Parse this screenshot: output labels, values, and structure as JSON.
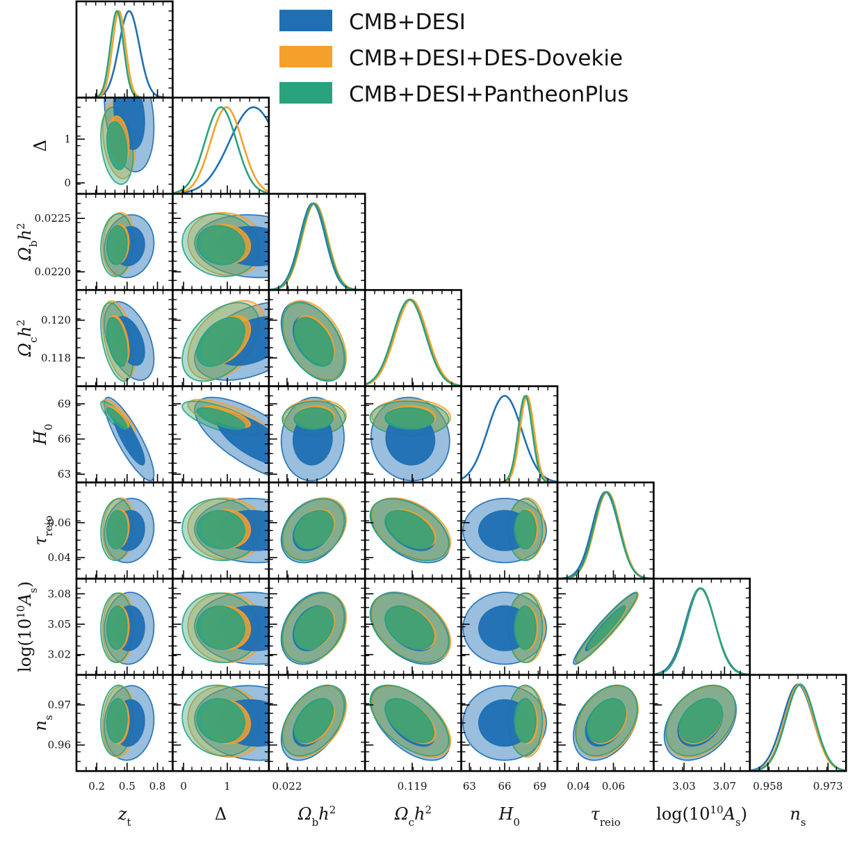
{
  "chart_data": {
    "type": "corner",
    "title": "",
    "legend": {
      "placement": "top-right",
      "entries": [
        {
          "name": "CMB+DESI",
          "color": "#1f6fb4"
        },
        {
          "name": "CMB+DESI+DES-Dovekie",
          "color": "#f5a02a"
        },
        {
          "name": "CMB+DESI+PantheonPlus",
          "color": "#2aa27e"
        }
      ]
    },
    "parameters": [
      {
        "key": "zt",
        "label_main": "z",
        "label_sub": "t",
        "label_sup": "",
        "range": [
          0.0,
          0.95
        ],
        "ticks": [
          {
            "v": 0.2,
            "t": "0.2"
          },
          {
            "v": 0.5,
            "t": "0.5"
          },
          {
            "v": 0.8,
            "t": "0.8"
          }
        ],
        "row_ticks": []
      },
      {
        "key": "Delta",
        "label_main": "Δ",
        "label_sub": "",
        "label_sup": "",
        "range": [
          -0.25,
          1.95
        ],
        "ticks": [
          {
            "v": 0,
            "t": "0"
          },
          {
            "v": 1,
            "t": "1"
          }
        ],
        "row_ticks": [
          {
            "v": 0,
            "t": "0"
          },
          {
            "v": 1,
            "t": "1"
          }
        ]
      },
      {
        "key": "ombh2",
        "label_main": "Ω",
        "label_sub": "b",
        "label_sup": "",
        "label_tail": "h",
        "tail_sup": "2",
        "range": [
          0.02183,
          0.02273
        ],
        "ticks": [
          {
            "v": 0.022,
            "t": "0.022"
          }
        ],
        "row_ticks": [
          {
            "v": 0.0225,
            "t": "0.0225"
          },
          {
            "v": 0.022,
            "t": "0.0220"
          }
        ]
      },
      {
        "key": "omch2",
        "label_main": "Ω",
        "label_sub": "c",
        "label_sup": "",
        "label_tail": "h",
        "tail_sup": "2",
        "range": [
          0.1165,
          0.1216
        ],
        "ticks": [
          {
            "v": 0.119,
            "t": "0.119"
          }
        ],
        "row_ticks": [
          {
            "v": 0.12,
            "t": "0.120"
          },
          {
            "v": 0.118,
            "t": "0.118"
          }
        ]
      },
      {
        "key": "H0",
        "label_main": "H",
        "label_sub": "0",
        "label_sup": "",
        "range": [
          62.3,
          70.5
        ],
        "ticks": [
          {
            "v": 63,
            "t": "63"
          },
          {
            "v": 66,
            "t": "66"
          },
          {
            "v": 69,
            "t": "69"
          }
        ],
        "row_ticks": [
          {
            "v": 69,
            "t": "69"
          },
          {
            "v": 66,
            "t": "66"
          },
          {
            "v": 63,
            "t": "63"
          }
        ]
      },
      {
        "key": "tau",
        "label_main": "τ",
        "label_sub": "reio",
        "label_sup": "",
        "range": [
          0.028,
          0.083
        ],
        "ticks": [
          {
            "v": 0.04,
            "t": "0.04"
          },
          {
            "v": 0.06,
            "t": "0.06"
          }
        ],
        "row_ticks": [
          {
            "v": 0.06,
            "t": "0.06"
          },
          {
            "v": 0.04,
            "t": "0.04"
          }
        ]
      },
      {
        "key": "logA",
        "label_main": "log(10",
        "label_sub": "",
        "label_sup": "10",
        "label_tail": "A",
        "tail_sub": "s",
        "tail_close": ")",
        "range": [
          3.0,
          3.095
        ],
        "ticks": [
          {
            "v": 3.03,
            "t": "3.03"
          },
          {
            "v": 3.07,
            "t": "3.07"
          }
        ],
        "row_ticks": [
          {
            "v": 3.08,
            "t": "3.08"
          },
          {
            "v": 3.05,
            "t": "3.05"
          },
          {
            "v": 3.02,
            "t": "3.02"
          }
        ]
      },
      {
        "key": "ns",
        "label_main": "n",
        "label_sub": "s",
        "label_sup": "",
        "range": [
          0.9535,
          0.9775
        ],
        "ticks": [
          {
            "v": 0.958,
            "t": "0.958"
          },
          {
            "v": 0.973,
            "t": "0.973"
          }
        ],
        "row_ticks": [
          {
            "v": 0.97,
            "t": "0.97"
          },
          {
            "v": 0.96,
            "t": "0.96"
          }
        ]
      }
    ],
    "series": [
      {
        "name": "CMB+DESI",
        "means": {
          "zt": 0.52,
          "Delta": 1.6,
          "ombh2": 0.02224,
          "omch2": 0.1189,
          "H0": 66.0,
          "tau": 0.0555,
          "logA": 3.046,
          "ns": 0.9655
        },
        "sigmas": {
          "zt": 0.1,
          "Delta": 0.55,
          "ombh2": 0.00012,
          "omch2": 0.00085,
          "H0": 1.45,
          "tau": 0.0075,
          "logA": 0.0145,
          "ns": 0.0038
        }
      },
      {
        "name": "CMB+DESI+DES-Dovekie",
        "means": {
          "zt": 0.42,
          "Delta": 0.98,
          "ombh2": 0.02226,
          "omch2": 0.11895,
          "H0": 67.9,
          "tau": 0.0565,
          "logA": 3.0465,
          "ns": 0.9658
        },
        "sigmas": {
          "zt": 0.065,
          "Delta": 0.36,
          "ombh2": 0.00012,
          "omch2": 0.00085,
          "H0": 0.6,
          "tau": 0.0072,
          "logA": 0.014,
          "ns": 0.0036
        }
      },
      {
        "name": "CMB+DESI+PantheonPlus",
        "means": {
          "zt": 0.4,
          "Delta": 0.85,
          "ombh2": 0.02225,
          "omch2": 0.11885,
          "H0": 67.75,
          "tau": 0.056,
          "logA": 3.0465,
          "ns": 0.9661
        },
        "sigmas": {
          "zt": 0.065,
          "Delta": 0.36,
          "ombh2": 0.00012,
          "omch2": 0.00085,
          "H0": 0.6,
          "tau": 0.0072,
          "logA": 0.014,
          "ns": 0.0036
        }
      }
    ],
    "correlations": {
      "zt|Delta": -0.25,
      "zt|ombh2": 0.1,
      "zt|omch2": -0.45,
      "zt|H0": -0.85,
      "zt|tau": 0.1,
      "zt|logA": 0.05,
      "zt|ns": 0.1,
      "Delta|ombh2": -0.1,
      "Delta|omch2": 0.45,
      "Delta|H0": -0.7,
      "Delta|tau": -0.05,
      "Delta|logA": -0.05,
      "Delta|ns": -0.1,
      "ombh2|omch2": -0.45,
      "ombh2|H0": 0.05,
      "ombh2|tau": 0.3,
      "ombh2|logA": 0.3,
      "ombh2|ns": 0.45,
      "omch2|H0": -0.05,
      "omch2|tau": -0.45,
      "omch2|logA": -0.4,
      "omch2|ns": -0.55,
      "H0|tau": 0.0,
      "H0|logA": 0.0,
      "H0|ns": 0.0,
      "tau|logA": 0.95,
      "tau|ns": 0.35,
      "logA|ns": 0.35
    }
  }
}
